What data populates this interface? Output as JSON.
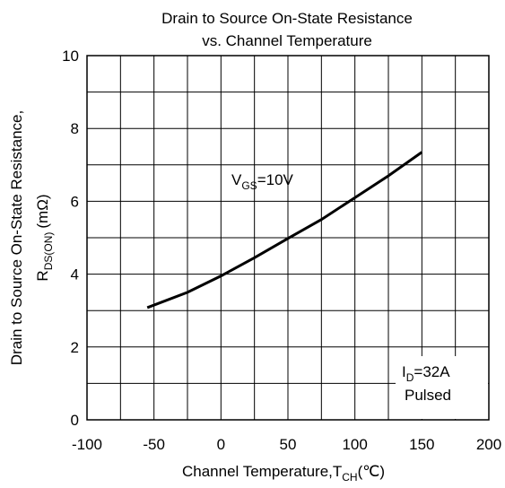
{
  "chart_data": {
    "type": "line",
    "title": [
      "Drain to Source On-State Resistance",
      "vs. Channel Temperature"
    ],
    "x_label": [
      "Channel Temperature,T",
      "CH",
      "(℃)"
    ],
    "y_label": [
      "Drain to Source On-State Resistance,",
      "R",
      "DS(ON)",
      "(mΩ)"
    ],
    "annotations": {
      "vgs": [
        "V",
        "GS",
        "=10V"
      ],
      "id": [
        "I",
        "D",
        "=32A"
      ],
      "pulsed": "Pulsed"
    },
    "x": [
      -55,
      -25,
      0,
      25,
      50,
      75,
      100,
      125,
      150
    ],
    "series": [
      {
        "name": "VGS=10V",
        "color": "#000000",
        "values": [
          3.08,
          3.5,
          3.95,
          4.45,
          4.98,
          5.5,
          6.1,
          6.7,
          7.35
        ]
      }
    ],
    "xlim": [
      -100,
      200
    ],
    "xticks": [
      -100,
      -50,
      0,
      50,
      100,
      150,
      200
    ],
    "xminor": [
      -75,
      -25,
      25,
      75,
      125,
      175
    ],
    "ylim": [
      0,
      10
    ],
    "yticks": [
      0,
      2,
      4,
      6,
      8,
      10
    ],
    "yminor": [
      1,
      3,
      5,
      7,
      9
    ],
    "grid": true
  }
}
